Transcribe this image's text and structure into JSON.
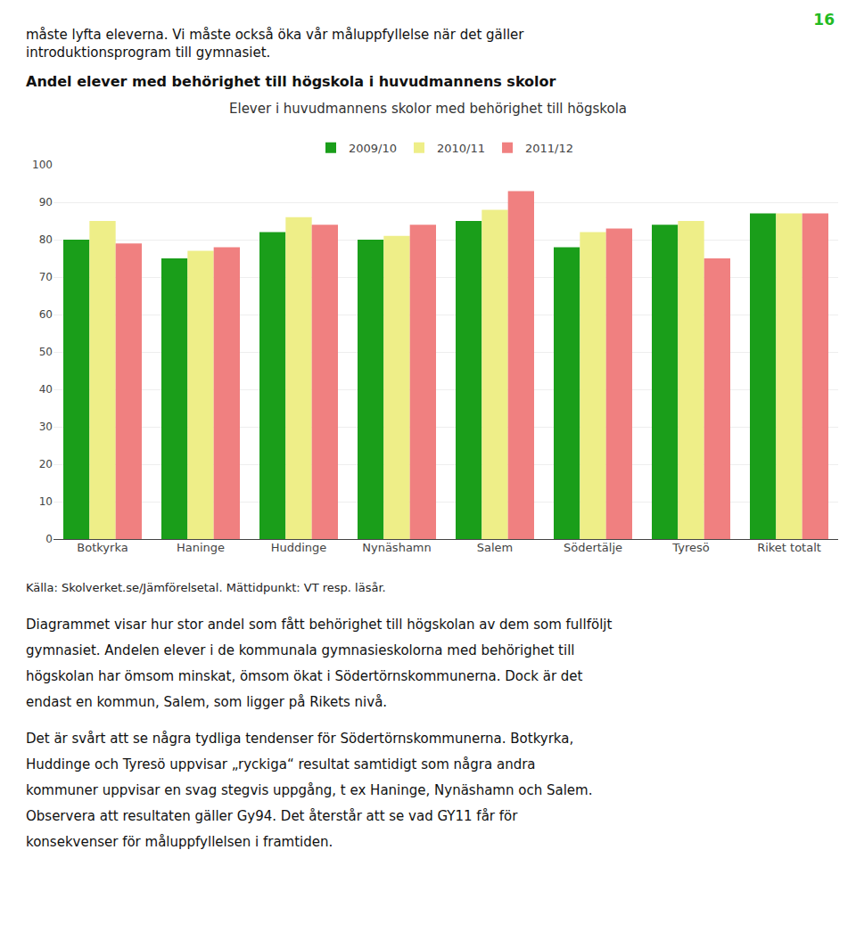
{
  "chart_data": {
    "type": "bar",
    "title": "Elever i huvudmannens skolor med behörighet till högskola",
    "annotations": [
      "16",
      "måste lyfta eleverna. Vi måste också öka vår måluppfyllelse när det gäller",
      "introduktionsprogram till gymnasiet.",
      "Andel elever med behörighet till högskola i huvudmannens skolor",
      "Källa: Skolverket.se/Jämförelsetal. Mättidpunkt: VT resp. läsår.",
      "Diagrammet visar hur stor andel som fått behörighet till högskolan av dem som fullföljt",
      "gymnasiet. Andelen elever i de kommunala gymnasieskolorna med behörighet till",
      "högskolan har ömsom minskat, ömsom ökat i Södertörnskommunerna. Dock är det",
      "endast en kommun, Salem, som ligger på Rikets nivå.",
      "Det är svårt att se några tydliga tendenser för Södertörnskommunerna. Botkyrka,",
      "Huddinge och Tyresö uppvisar „ryckiga“ resultat samtidigt som några andra",
      "kommuner uppvisar en svag stegvis uppgång, t ex Haninge, Nynäshamn och Salem.",
      "Observera att resultaten gäller Gy94. Det återstår att se vad GY11 får för",
      "konsekvenser för måluppfyllelsen i framtiden."
    ],
    "categories": [
      "Botkyrka",
      "Haninge",
      "Huddinge",
      "Nynäshamn",
      "Salem",
      "Södertälje",
      "Tyresö",
      "Riket totalt"
    ],
    "series": [
      {
        "name": "2009/10",
        "color": "#1A9E1A",
        "values": [
          80,
          75,
          82,
          80,
          85,
          78,
          84,
          87
        ]
      },
      {
        "name": "2010/11",
        "color": "#EEEE88",
        "values": [
          85,
          77,
          86,
          81,
          88,
          82,
          85,
          87
        ]
      },
      {
        "name": "2011/12",
        "color": "#F08080",
        "values": [
          79,
          78,
          84,
          84,
          93,
          83,
          75,
          87
        ]
      }
    ],
    "ylim": [
      0,
      100
    ],
    "yticks": [
      0,
      10,
      20,
      30,
      40,
      50,
      60,
      70,
      80,
      90,
      100
    ],
    "grid": true,
    "legend": "top"
  }
}
